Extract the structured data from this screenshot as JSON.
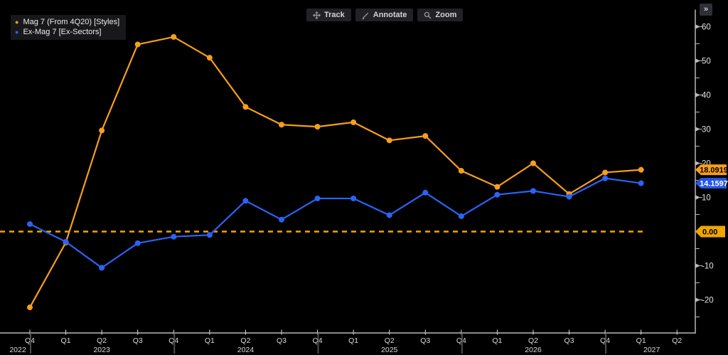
{
  "app": {
    "more_button": "»"
  },
  "toolbar": {
    "buttons": [
      {
        "name": "track",
        "label": "Track"
      },
      {
        "name": "annotate",
        "label": "Annotate"
      },
      {
        "name": "zoom",
        "label": "Zoom"
      }
    ]
  },
  "legend": {
    "items": [
      {
        "label": "Mag 7 (From 4Q20) [Styles]",
        "color": "#f79e1b"
      },
      {
        "label": "Ex-Mag 7 [Ex-Sectors]",
        "color": "#2a63f6"
      }
    ]
  },
  "chart_data": {
    "type": "line",
    "title": "",
    "xlabel": "",
    "ylabel": "",
    "grid": "off",
    "legend_position": "top-left",
    "x_tick_labels": [
      "Q4",
      "Q1",
      "Q2",
      "Q3",
      "Q4",
      "Q1",
      "Q2",
      "Q3",
      "Q4",
      "Q1",
      "Q2",
      "Q3",
      "Q4",
      "Q1",
      "Q2",
      "Q3",
      "Q4",
      "Q1",
      "Q2"
    ],
    "year_labels": [
      {
        "at": 0,
        "label": "2022",
        "dx": -17
      },
      {
        "at": 2,
        "label": "2023",
        "dx": 0
      },
      {
        "at": 6,
        "label": "2024",
        "dx": 0
      },
      {
        "at": 10,
        "label": "2025",
        "dx": 0
      },
      {
        "at": 14,
        "label": "2026",
        "dx": 0
      },
      {
        "at": 17,
        "label": "2027",
        "dx": 15
      }
    ],
    "year_divider_indices": [
      0,
      4,
      8,
      12,
      16
    ],
    "y_axis": {
      "major_ticks": [
        60,
        50,
        40,
        30,
        20,
        10,
        -10,
        -20
      ],
      "minor_ticks": [
        55,
        45,
        35,
        25,
        15,
        5,
        -5,
        -15,
        -25
      ],
      "ylim": [
        -29.8,
        64.9
      ]
    },
    "series": [
      {
        "name": "Mag 7 (From 4Q20) [Styles]",
        "color": "#f79e1b",
        "values": [
          -22.2,
          -3.2,
          29.6,
          54.8,
          57.0,
          50.9,
          36.5,
          31.3,
          30.7,
          32.0,
          26.7,
          28.0,
          17.8,
          13.1,
          20.0,
          11.0,
          17.3,
          18.0919
        ]
      },
      {
        "name": "Ex-Mag 7 [Ex-Sectors]",
        "color": "#2a63f6",
        "values": [
          2.2,
          -3.0,
          -10.6,
          -3.4,
          -1.5,
          -1.0,
          9.0,
          3.5,
          9.7,
          9.7,
          4.8,
          11.4,
          4.5,
          10.8,
          11.9,
          10.2,
          15.6,
          14.1597
        ]
      }
    ],
    "last_value_badges": [
      {
        "text": "18.0919",
        "bg": "#f79e1b",
        "fg": "#000000"
      },
      {
        "text": "14.1597",
        "bg": "#2457e6",
        "fg": "#ffffff"
      }
    ],
    "zero_line": {
      "value": 0,
      "label": "0.00",
      "color": "#f0a600"
    }
  }
}
